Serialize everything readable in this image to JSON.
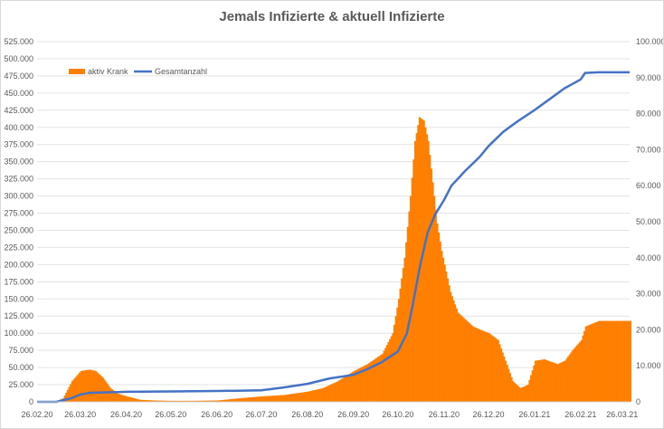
{
  "chart_data": {
    "type": "bar",
    "title": "Jemals Infizierte & aktuell Infizierte",
    "legend_position": "top-left",
    "grid": true,
    "colors": {
      "aktiv_krank": "#ff7f00",
      "gesamtanzahl": "#4472c4"
    },
    "left_axis": {
      "ylim": [
        0,
        525000
      ],
      "ticks": [
        "0",
        "25.000",
        "50.000",
        "75.000",
        "100.000",
        "125.000",
        "150.000",
        "175.000",
        "200.000",
        "225.000",
        "250.000",
        "275.000",
        "300.000",
        "325.000",
        "350.000",
        "375.000",
        "400.000",
        "425.000",
        "450.000",
        "475.000",
        "500.000",
        "525.000"
      ]
    },
    "right_axis": {
      "ylim": [
        0,
        100000
      ],
      "ticks": [
        "0",
        "10.000",
        "20.000",
        "30.000",
        "40.000",
        "50.000",
        "60.000",
        "70.000",
        "80.000",
        "90.000",
        "100.000"
      ]
    },
    "x_ticks": [
      "26.02.20",
      "26.03.20",
      "26.04.20",
      "26.05.20",
      "26.06.20",
      "26.07.20",
      "26.08.20",
      "26.09.20",
      "26.10.20",
      "26.11.20",
      "26.12.20",
      "26.01.21",
      "26.02.21",
      "26.03.21"
    ],
    "series": [
      {
        "name": "aktiv Krank",
        "type": "bar",
        "axis": "left",
        "x": [
          "26.02.20",
          "08.03.20",
          "14.03.20",
          "20.03.20",
          "26.03.20",
          "01.04.20",
          "05.04.20",
          "10.04.20",
          "15.04.20",
          "20.04.20",
          "26.04.20",
          "05.05.20",
          "15.05.20",
          "26.05.20",
          "10.06.20",
          "26.06.20",
          "10.07.20",
          "26.07.20",
          "10.08.20",
          "26.08.20",
          "05.09.20",
          "15.09.20",
          "26.09.20",
          "05.10.20",
          "15.10.20",
          "22.10.20",
          "26.10.20",
          "30.10.20",
          "03.11.20",
          "06.11.20",
          "09.11.20",
          "12.11.20",
          "15.11.20",
          "18.11.20",
          "21.11.20",
          "24.11.20",
          "26.11.20",
          "30.11.20",
          "05.12.20",
          "10.12.20",
          "15.12.20",
          "20.12.20",
          "26.12.20",
          "01.01.21",
          "06.01.21",
          "11.01.21",
          "16.01.21",
          "21.01.21",
          "26.01.21",
          "01.02.21",
          "10.02.21",
          "15.02.21",
          "20.02.21",
          "26.02.21",
          "01.03.21",
          "10.03.21",
          "20.03.21",
          "31.03.21"
        ],
        "values": [
          0,
          0,
          5000,
          30000,
          45000,
          47000,
          45000,
          35000,
          20000,
          12000,
          8000,
          3000,
          2000,
          1500,
          1500,
          2000,
          5000,
          8000,
          10000,
          15000,
          20000,
          30000,
          45000,
          55000,
          70000,
          100000,
          150000,
          210000,
          300000,
          380000,
          415000,
          410000,
          380000,
          320000,
          260000,
          220000,
          200000,
          160000,
          130000,
          120000,
          110000,
          105000,
          100000,
          90000,
          60000,
          30000,
          20000,
          25000,
          60000,
          62000,
          55000,
          60000,
          75000,
          90000,
          110000,
          118000,
          118000,
          118000
        ]
      },
      {
        "name": "Gesamtanzahl",
        "type": "line",
        "axis": "right",
        "x": [
          "26.02.20",
          "10.03.20",
          "20.03.20",
          "26.03.20",
          "01.04.20",
          "10.04.20",
          "20.04.20",
          "26.04.20",
          "26.05.20",
          "26.06.20",
          "26.07.20",
          "10.08.20",
          "26.08.20",
          "10.09.20",
          "26.09.20",
          "05.10.20",
          "15.10.20",
          "26.10.20",
          "01.11.20",
          "05.11.20",
          "10.11.20",
          "15.11.20",
          "20.11.20",
          "26.11.20",
          "01.12.20",
          "10.12.20",
          "20.12.20",
          "26.12.20",
          "05.01.21",
          "15.01.21",
          "26.01.21",
          "05.02.21",
          "15.02.21",
          "26.02.21",
          "01.03.21",
          "10.03.21",
          "20.03.21",
          "31.03.21"
        ],
        "values": [
          0,
          0,
          1000,
          2000,
          2500,
          2600,
          2700,
          2800,
          2900,
          3000,
          3200,
          4000,
          5000,
          6500,
          7500,
          9000,
          11000,
          14000,
          19000,
          27000,
          38000,
          47000,
          52000,
          56000,
          60000,
          64000,
          68000,
          71000,
          75000,
          78000,
          81000,
          84000,
          87000,
          89500,
          91300,
          91500,
          91500,
          91500
        ]
      }
    ]
  }
}
